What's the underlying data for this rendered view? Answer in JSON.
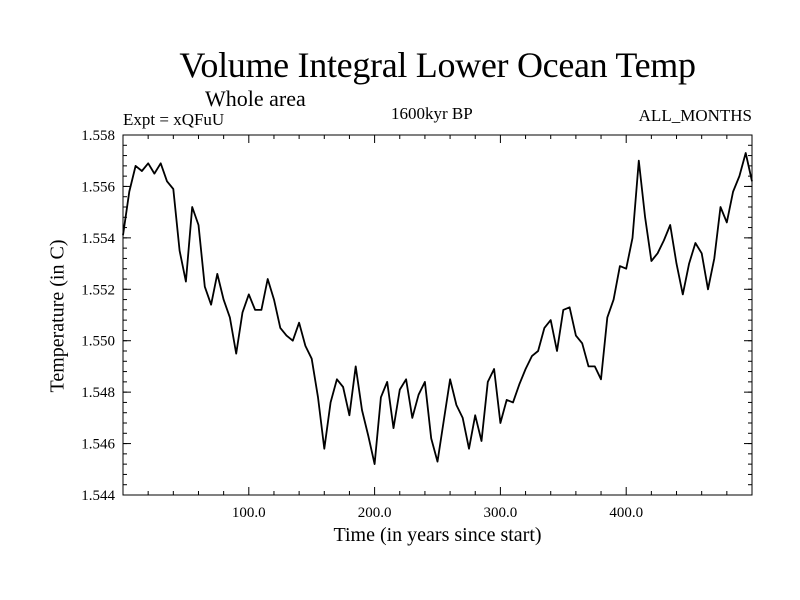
{
  "chart_data": {
    "type": "line",
    "title": "Volume Integral Lower Ocean Temp",
    "subtitle": "Whole area",
    "annotations": {
      "left": "Expt = xQFuU",
      "center": "1600kyr BP",
      "right": "ALL_MONTHS"
    },
    "xlabel": "Time (in years since start)",
    "ylabel": "Temperature (in C)",
    "xlim": [
      0,
      500
    ],
    "ylim": [
      1.544,
      1.558
    ],
    "xticks": [
      100,
      200,
      300,
      400
    ],
    "xtick_labels": [
      "100.0",
      "200.0",
      "300.0",
      "400.0"
    ],
    "yticks": [
      1.544,
      1.546,
      1.548,
      1.55,
      1.552,
      1.554,
      1.556,
      1.558
    ],
    "ytick_labels": [
      "1.544",
      "1.546",
      "1.548",
      "1.550",
      "1.552",
      "1.554",
      "1.556",
      "1.558"
    ],
    "series": [
      {
        "name": "Temperature",
        "x": [
          0,
          5,
          10,
          15,
          20,
          25,
          30,
          35,
          40,
          45,
          50,
          55,
          60,
          65,
          70,
          75,
          80,
          85,
          90,
          95,
          100,
          105,
          110,
          115,
          120,
          125,
          130,
          135,
          140,
          145,
          150,
          155,
          160,
          165,
          170,
          175,
          180,
          185,
          190,
          195,
          200,
          205,
          210,
          215,
          220,
          225,
          230,
          235,
          240,
          245,
          250,
          255,
          260,
          265,
          270,
          275,
          280,
          285,
          290,
          295,
          300,
          305,
          310,
          315,
          320,
          325,
          330,
          335,
          340,
          345,
          350,
          355,
          360,
          365,
          370,
          375,
          380,
          385,
          390,
          395,
          400,
          405,
          410,
          415,
          420,
          425,
          430,
          435,
          440,
          445,
          450,
          455,
          460,
          465,
          470,
          475,
          480,
          485,
          490,
          495,
          500
        ],
        "values": [
          1.5541,
          1.5558,
          1.5568,
          1.5566,
          1.5569,
          1.5565,
          1.5569,
          1.5562,
          1.5559,
          1.5535,
          1.5523,
          1.5552,
          1.5545,
          1.5521,
          1.5514,
          1.5526,
          1.5516,
          1.5509,
          1.5495,
          1.5511,
          1.5518,
          1.5512,
          1.5512,
          1.5524,
          1.5516,
          1.5505,
          1.5502,
          1.55,
          1.5507,
          1.5498,
          1.5493,
          1.5478,
          1.5458,
          1.5476,
          1.5485,
          1.5482,
          1.5471,
          1.549,
          1.5473,
          1.5463,
          1.5452,
          1.5478,
          1.5484,
          1.5466,
          1.5481,
          1.5485,
          1.547,
          1.5479,
          1.5484,
          1.5462,
          1.5453,
          1.5469,
          1.5485,
          1.5475,
          1.547,
          1.5458,
          1.5471,
          1.5461,
          1.5484,
          1.5489,
          1.5468,
          1.5477,
          1.5476,
          1.5483,
          1.5489,
          1.5494,
          1.5496,
          1.5505,
          1.5508,
          1.5496,
          1.5512,
          1.5513,
          1.5502,
          1.5499,
          1.549,
          1.549,
          1.5485,
          1.5509,
          1.5516,
          1.5529,
          1.5528,
          1.554,
          1.557,
          1.5548,
          1.5531,
          1.5534,
          1.5539,
          1.5545,
          1.553,
          1.5518,
          1.553,
          1.5538,
          1.5534,
          1.552,
          1.5532,
          1.5552,
          1.5546,
          1.5558,
          1.5564,
          1.5573,
          1.5562
        ]
      }
    ]
  }
}
